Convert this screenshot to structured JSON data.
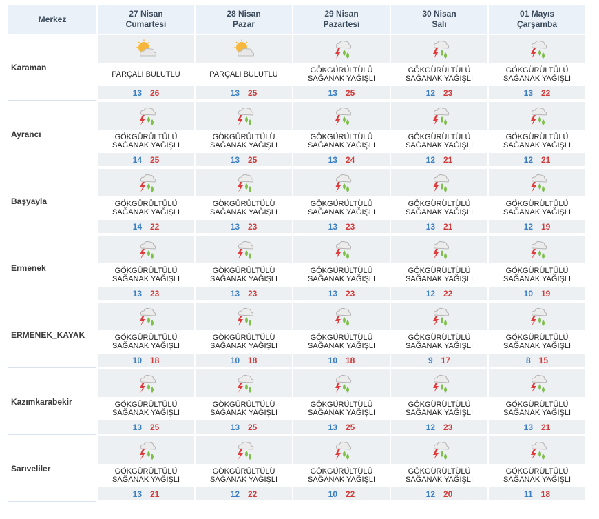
{
  "header": {
    "merkez_label": "Merkez",
    "days": [
      {
        "date": "27 Nisan",
        "weekday": "Cumartesi"
      },
      {
        "date": "28 Nisan",
        "weekday": "Pazar"
      },
      {
        "date": "29 Nisan",
        "weekday": "Pazartesi"
      },
      {
        "date": "30 Nisan",
        "weekday": "Salı"
      },
      {
        "date": "01 Mayıs",
        "weekday": "Çarşamba"
      }
    ]
  },
  "rows": [
    {
      "city": "Karaman",
      "days": [
        {
          "icon": "partly-cloudy-icon",
          "desc": "PARÇALI BULUTLU",
          "min": "13",
          "max": "26"
        },
        {
          "icon": "partly-cloudy-icon",
          "desc": "PARÇALI BULUTLU",
          "min": "13",
          "max": "25"
        },
        {
          "icon": "thunderstorm-icon",
          "desc": "GÖKGÜRÜLTÜLÜ SAĞANAK YAĞIŞLI",
          "min": "13",
          "max": "25"
        },
        {
          "icon": "thunderstorm-icon",
          "desc": "GÖKGÜRÜLTÜLÜ SAĞANAK YAĞIŞLI",
          "min": "12",
          "max": "23"
        },
        {
          "icon": "thunderstorm-icon",
          "desc": "GÖKGÜRÜLTÜLÜ SAĞANAK YAĞIŞLI",
          "min": "13",
          "max": "22"
        }
      ]
    },
    {
      "city": "Ayrancı",
      "days": [
        {
          "icon": "thunderstorm-icon",
          "desc": "GÖKGÜRÜLTÜLÜ SAĞANAK YAĞIŞLI",
          "min": "14",
          "max": "25"
        },
        {
          "icon": "thunderstorm-icon",
          "desc": "GÖKGÜRÜLTÜLÜ SAĞANAK YAĞIŞLI",
          "min": "13",
          "max": "25"
        },
        {
          "icon": "thunderstorm-icon",
          "desc": "GÖKGÜRÜLTÜLÜ SAĞANAK YAĞIŞLI",
          "min": "13",
          "max": "24"
        },
        {
          "icon": "thunderstorm-icon",
          "desc": "GÖKGÜRÜLTÜLÜ SAĞANAK YAĞIŞLI",
          "min": "12",
          "max": "21"
        },
        {
          "icon": "thunderstorm-icon",
          "desc": "GÖKGÜRÜLTÜLÜ SAĞANAK YAĞIŞLI",
          "min": "12",
          "max": "21"
        }
      ]
    },
    {
      "city": "Başyayla",
      "days": [
        {
          "icon": "thunderstorm-icon",
          "desc": "GÖKGÜRÜLTÜLÜ SAĞANAK YAĞIŞLI",
          "min": "14",
          "max": "22"
        },
        {
          "icon": "thunderstorm-icon",
          "desc": "GÖKGÜRÜLTÜLÜ SAĞANAK YAĞIŞLI",
          "min": "13",
          "max": "23"
        },
        {
          "icon": "thunderstorm-icon",
          "desc": "GÖKGÜRÜLTÜLÜ SAĞANAK YAĞIŞLI",
          "min": "13",
          "max": "23"
        },
        {
          "icon": "thunderstorm-icon",
          "desc": "GÖKGÜRÜLTÜLÜ SAĞANAK YAĞIŞLI",
          "min": "13",
          "max": "21"
        },
        {
          "icon": "thunderstorm-icon",
          "desc": "GÖKGÜRÜLTÜLÜ SAĞANAK YAĞIŞLI",
          "min": "12",
          "max": "19"
        }
      ]
    },
    {
      "city": "Ermenek",
      "days": [
        {
          "icon": "thunderstorm-icon",
          "desc": "GÖKGÜRÜLTÜLÜ SAĞANAK YAĞIŞLI",
          "min": "13",
          "max": "23"
        },
        {
          "icon": "thunderstorm-icon",
          "desc": "GÖKGÜRÜLTÜLÜ SAĞANAK YAĞIŞLI",
          "min": "13",
          "max": "23"
        },
        {
          "icon": "thunderstorm-icon",
          "desc": "GÖKGÜRÜLTÜLÜ SAĞANAK YAĞIŞLI",
          "min": "13",
          "max": "23"
        },
        {
          "icon": "thunderstorm-icon",
          "desc": "GÖKGÜRÜLTÜLÜ SAĞANAK YAĞIŞLI",
          "min": "12",
          "max": "22"
        },
        {
          "icon": "thunderstorm-icon",
          "desc": "GÖKGÜRÜLTÜLÜ SAĞANAK YAĞIŞLI",
          "min": "10",
          "max": "19"
        }
      ]
    },
    {
      "city": "ERMENEK_KAYAK",
      "days": [
        {
          "icon": "thunderstorm-icon",
          "desc": "GÖKGÜRÜLTÜLÜ SAĞANAK YAĞIŞLI",
          "min": "10",
          "max": "18"
        },
        {
          "icon": "thunderstorm-icon",
          "desc": "GÖKGÜRÜLTÜLÜ SAĞANAK YAĞIŞLI",
          "min": "10",
          "max": "18"
        },
        {
          "icon": "thunderstorm-icon",
          "desc": "GÖKGÜRÜLTÜLÜ SAĞANAK YAĞIŞLI",
          "min": "10",
          "max": "18"
        },
        {
          "icon": "thunderstorm-icon",
          "desc": "GÖKGÜRÜLTÜLÜ SAĞANAK YAĞIŞLI",
          "min": "9",
          "max": "17"
        },
        {
          "icon": "thunderstorm-icon",
          "desc": "GÖKGÜRÜLTÜLÜ SAĞANAK YAĞIŞLI",
          "min": "8",
          "max": "15"
        }
      ]
    },
    {
      "city": "Kazımkarabekir",
      "days": [
        {
          "icon": "thunderstorm-icon",
          "desc": "GÖKGÜRÜLTÜLÜ SAĞANAK YAĞIŞLI",
          "min": "13",
          "max": "25"
        },
        {
          "icon": "thunderstorm-icon",
          "desc": "GÖKGÜRÜLTÜLÜ SAĞANAK YAĞIŞLI",
          "min": "13",
          "max": "25"
        },
        {
          "icon": "thunderstorm-icon",
          "desc": "GÖKGÜRÜLTÜLÜ SAĞANAK YAĞIŞLI",
          "min": "13",
          "max": "25"
        },
        {
          "icon": "thunderstorm-icon",
          "desc": "GÖKGÜRÜLTÜLÜ SAĞANAK YAĞIŞLI",
          "min": "12",
          "max": "23"
        },
        {
          "icon": "thunderstorm-icon",
          "desc": "GÖKGÜRÜLTÜLÜ SAĞANAK YAĞIŞLI",
          "min": "13",
          "max": "21"
        }
      ]
    },
    {
      "city": "Sarıveliler",
      "days": [
        {
          "icon": "thunderstorm-icon",
          "desc": "GÖKGÜRÜLTÜLÜ SAĞANAK YAĞIŞLI",
          "min": "13",
          "max": "21"
        },
        {
          "icon": "thunderstorm-icon",
          "desc": "GÖKGÜRÜLTÜLÜ SAĞANAK YAĞIŞLI",
          "min": "12",
          "max": "22"
        },
        {
          "icon": "thunderstorm-icon",
          "desc": "GÖKGÜRÜLTÜLÜ SAĞANAK YAĞIŞLI",
          "min": "10",
          "max": "22"
        },
        {
          "icon": "thunderstorm-icon",
          "desc": "GÖKGÜRÜLTÜLÜ SAĞANAK YAĞIŞLI",
          "min": "12",
          "max": "20"
        },
        {
          "icon": "thunderstorm-icon",
          "desc": "GÖKGÜRÜLTÜLÜ SAĞANAK YAĞIŞLI",
          "min": "11",
          "max": "18"
        }
      ]
    }
  ],
  "colors": {
    "header_bg": "#eaf1f8",
    "band_gray": "#edf0f3",
    "min_temp": "#3a7fc4",
    "max_temp": "#d23b3b"
  }
}
